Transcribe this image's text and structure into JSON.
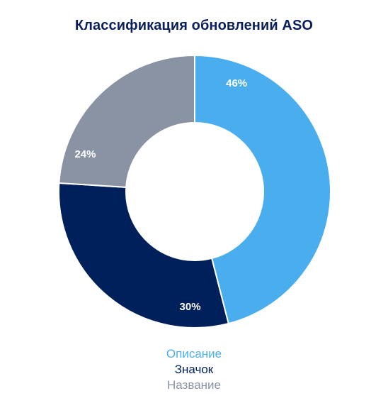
{
  "chart_data": {
    "type": "pie",
    "title": "Классификация обновлений ASO",
    "donut": true,
    "slices": [
      {
        "label": "Описание",
        "value": 46,
        "display": "46%",
        "color": "#4aaeee"
      },
      {
        "label": "Значок",
        "value": 30,
        "display": "30%",
        "color": "#00205b"
      },
      {
        "label": "Название",
        "value": 24,
        "display": "24%",
        "color": "#8a93a4"
      }
    ],
    "legend_position": "bottom",
    "start_angle": "top",
    "direction": "clockwise"
  }
}
